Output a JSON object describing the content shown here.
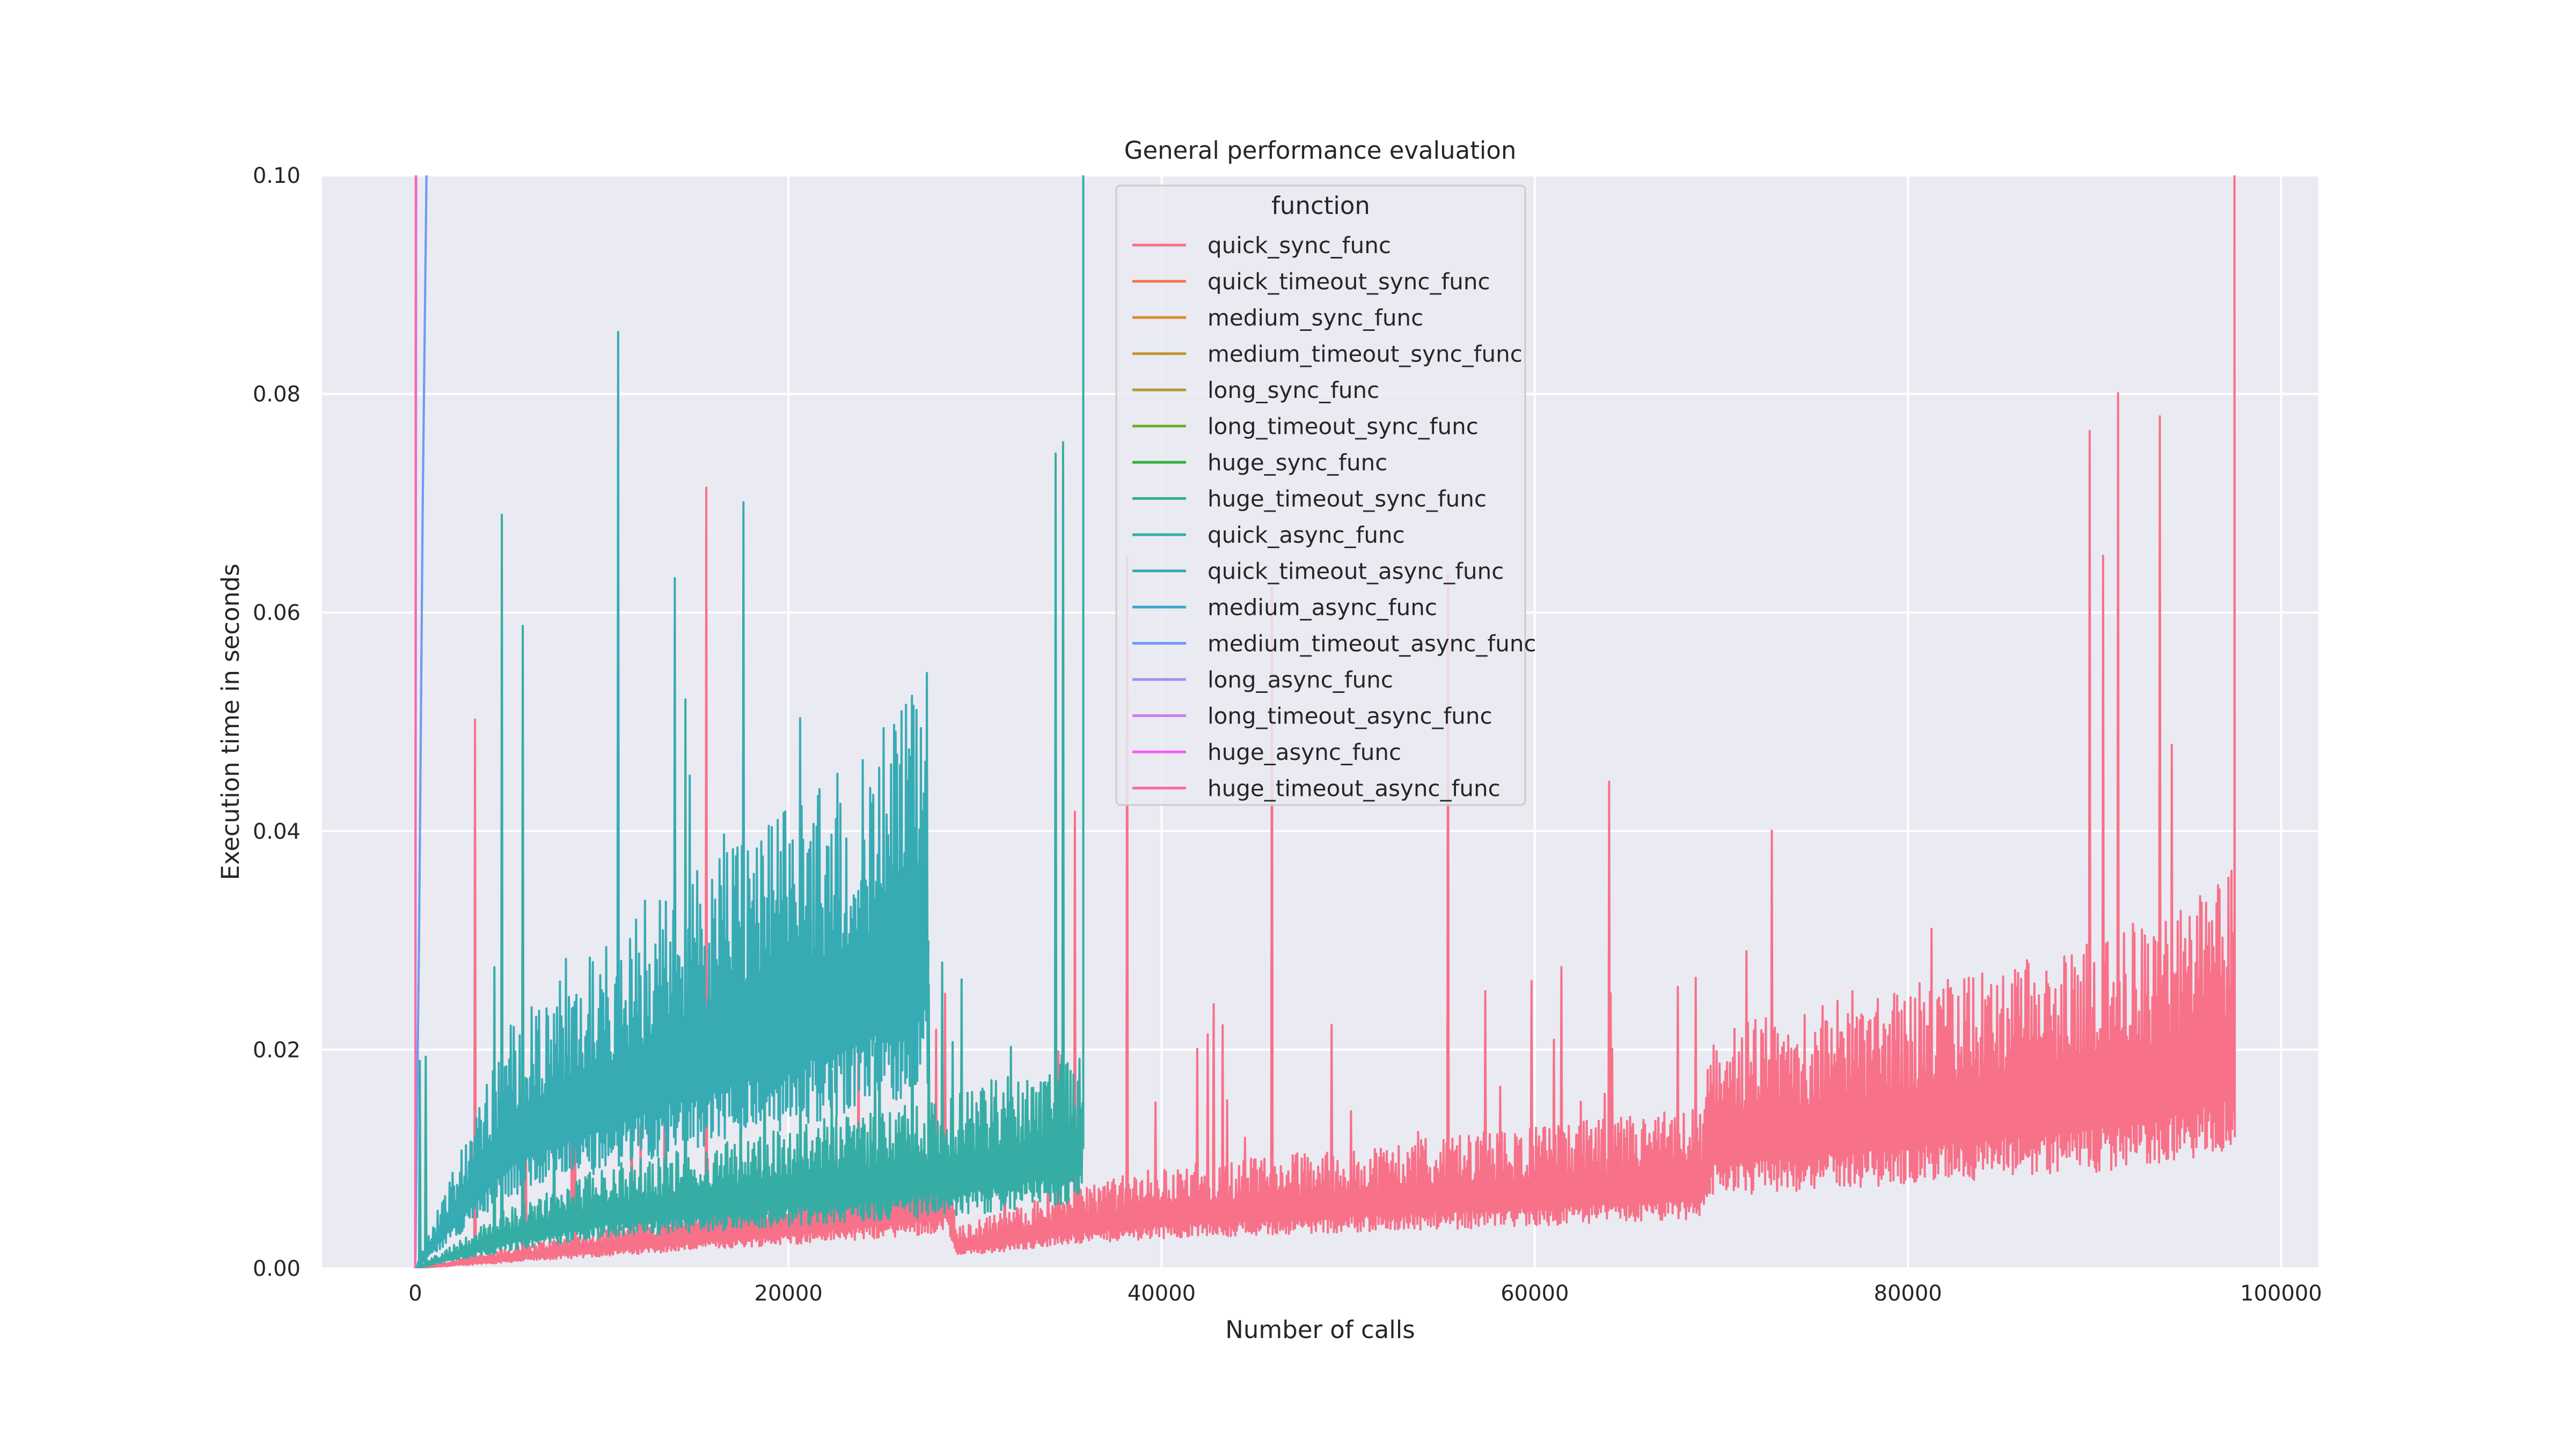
{
  "chart_data": {
    "type": "line",
    "title": "General performance evaluation",
    "xlabel": "Number of calls",
    "ylabel": "Execution time in seconds",
    "xlim": [
      -5000,
      102000
    ],
    "ylim": [
      0,
      0.1
    ],
    "xticks": [
      0,
      20000,
      40000,
      60000,
      80000,
      100000
    ],
    "yticks": [
      0.0,
      0.02,
      0.04,
      0.06,
      0.08,
      0.1
    ],
    "xtick_labels": [
      "0",
      "20000",
      "40000",
      "60000",
      "80000",
      "100000"
    ],
    "ytick_labels": [
      "0.00",
      "0.02",
      "0.04",
      "0.06",
      "0.08",
      "0.10"
    ],
    "grid": true,
    "legend": {
      "title": "function",
      "placement": "upper-center"
    },
    "series": [
      {
        "name": "quick_sync_func",
        "color": "#f77189",
        "x": [
          0,
          5000,
          10000,
          15000,
          20000,
          25000,
          28500,
          29000,
          35000,
          40000,
          50000,
          60000,
          69000,
          69500,
          75000,
          80000,
          85000,
          90000,
          95000,
          97500
        ],
        "y": [
          0.0,
          0.001,
          0.002,
          0.003,
          0.004,
          0.005,
          0.006,
          0.002,
          0.004,
          0.005,
          0.006,
          0.007,
          0.008,
          0.012,
          0.013,
          0.014,
          0.015,
          0.016,
          0.018,
          0.02
        ]
      },
      {
        "name": "quick_timeout_sync_func",
        "color": "#f7754f",
        "x": [],
        "y": []
      },
      {
        "name": "medium_sync_func",
        "color": "#dc8932",
        "x": [],
        "y": []
      },
      {
        "name": "medium_timeout_sync_func",
        "color": "#c39532",
        "x": [],
        "y": []
      },
      {
        "name": "long_sync_func",
        "color": "#ae9d31",
        "x": [],
        "y": []
      },
      {
        "name": "long_timeout_sync_func",
        "color": "#77ab31",
        "x": [],
        "y": []
      },
      {
        "name": "huge_sync_func",
        "color": "#33b039",
        "x": [],
        "y": []
      },
      {
        "name": "huge_timeout_sync_func",
        "color": "#34ae91",
        "x": [],
        "y": []
      },
      {
        "name": "quick_async_func",
        "color": "#36ada4",
        "x": [
          0,
          5000,
          10000,
          15000,
          20000,
          25000,
          30000,
          35800
        ],
        "y": [
          0.0,
          0.003,
          0.005,
          0.006,
          0.007,
          0.008,
          0.009,
          0.011
        ]
      },
      {
        "name": "quick_timeout_async_func",
        "color": "#37abb4",
        "x": [
          0,
          5000,
          10000,
          15000,
          20000,
          25000,
          27500
        ],
        "y": [
          0.0,
          0.012,
          0.016,
          0.02,
          0.023,
          0.027,
          0.03
        ]
      },
      {
        "name": "medium_async_func",
        "color": "#39a7d0",
        "x": [
          0,
          200,
          400,
          600
        ],
        "y": [
          0.0,
          0.03,
          0.07,
          0.1
        ]
      },
      {
        "name": "medium_timeout_async_func",
        "color": "#6e9bf4",
        "x": [
          0,
          200,
          400,
          600
        ],
        "y": [
          0.0,
          0.03,
          0.07,
          0.1
        ]
      },
      {
        "name": "long_async_func",
        "color": "#a48cf4",
        "x": [
          0,
          50
        ],
        "y": [
          0.0,
          0.1
        ]
      },
      {
        "name": "long_timeout_async_func",
        "color": "#cc7af4",
        "x": [
          0,
          40
        ],
        "y": [
          0.0,
          0.1
        ]
      },
      {
        "name": "huge_async_func",
        "color": "#f45cf2",
        "x": [
          0,
          30
        ],
        "y": [
          0.0,
          0.1
        ]
      },
      {
        "name": "huge_timeout_async_func",
        "color": "#f66bad",
        "x": [
          0,
          20
        ],
        "y": [
          0.0,
          0.1
        ]
      }
    ]
  }
}
